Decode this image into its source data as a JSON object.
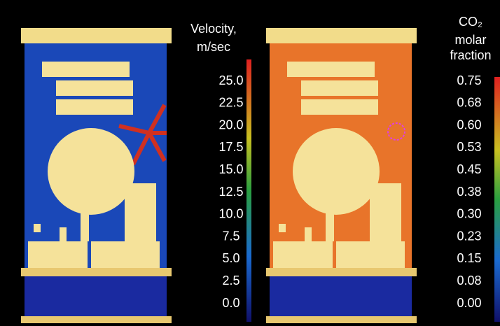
{
  "panels": [
    {
      "colorbar": {
        "title": [
          "Velocity,",
          "m/sec"
        ],
        "ticks": [
          "25.0",
          "22.5",
          "20.0",
          "17.5",
          "15.0",
          "12.5",
          "10.0",
          "7.5",
          "5.0",
          "2.5",
          "0.0"
        ]
      }
    },
    {
      "colorbar": {
        "title": [
          "CO₂",
          "molar",
          "fraction"
        ],
        "ticks": [
          "0.75",
          "0.68",
          "0.60",
          "0.53",
          "0.45",
          "0.38",
          "0.30",
          "0.23",
          "0.15",
          "0.08",
          "0.00"
        ]
      }
    }
  ]
}
